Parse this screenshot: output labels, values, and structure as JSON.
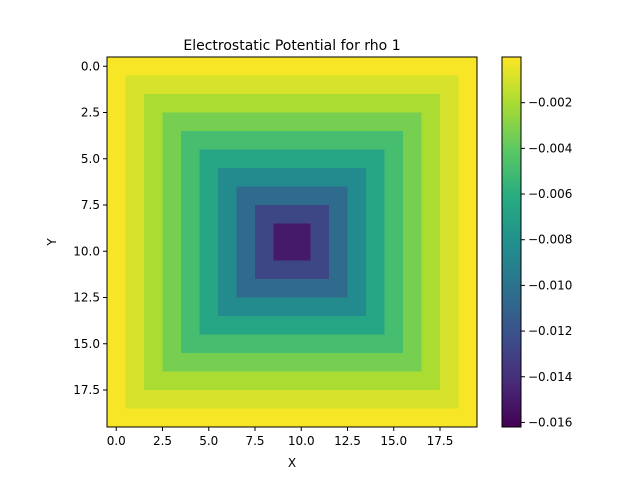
{
  "chart_data": {
    "type": "heatmap",
    "title": "Electrostatic Potential for rho 1",
    "xlabel": "X",
    "ylabel": "Y",
    "colormap": "viridis",
    "grid": false,
    "rows": 20,
    "cols": 20,
    "x_range": [
      -0.5,
      19.5
    ],
    "y_range": [
      -0.5,
      19.5
    ],
    "y_inverted": true,
    "x_ticks": [
      "0.0",
      "2.5",
      "5.0",
      "7.5",
      "10.0",
      "12.5",
      "15.0",
      "17.5"
    ],
    "y_ticks": [
      "0.0",
      "2.5",
      "5.0",
      "7.5",
      "10.0",
      "12.5",
      "15.0",
      "17.5"
    ],
    "x_tick_values": [
      0,
      2.5,
      5,
      7.5,
      10,
      12.5,
      15,
      17.5
    ],
    "y_tick_values": [
      0,
      2.5,
      5,
      7.5,
      10,
      12.5,
      15,
      17.5
    ],
    "colorbar": {
      "range": [
        -0.0162,
        0.0
      ],
      "ticks": [
        "−0.002",
        "−0.004",
        "−0.006",
        "−0.008",
        "−0.010",
        "−0.012",
        "−0.014",
        "−0.016"
      ],
      "tick_values": [
        -0.002,
        -0.004,
        -0.006,
        -0.008,
        -0.01,
        -0.012,
        -0.014,
        -0.016
      ]
    },
    "minimum_value": -0.0162,
    "minimum_at": [
      9.5,
      9.5
    ]
  }
}
